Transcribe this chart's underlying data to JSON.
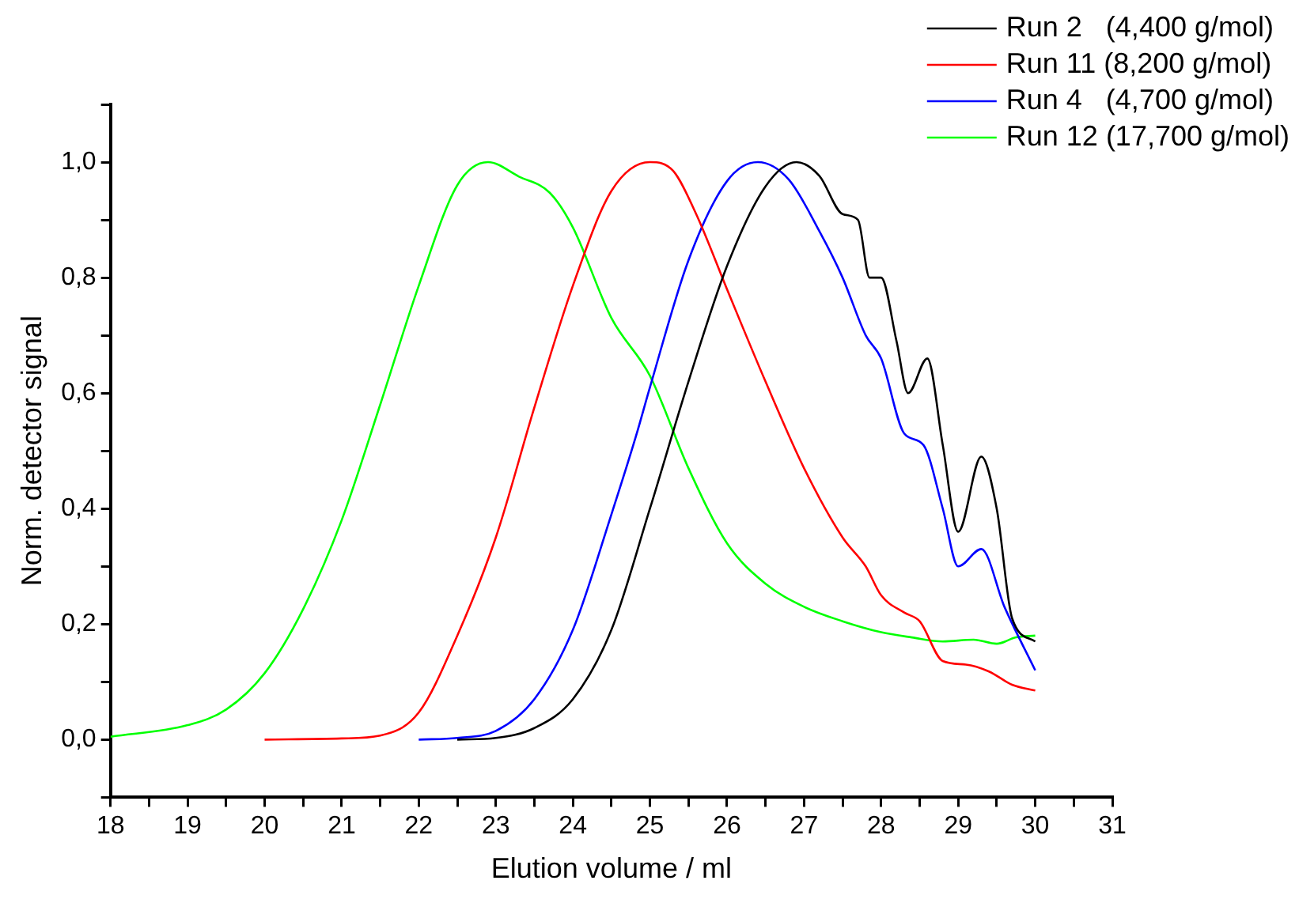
{
  "chart_data": {
    "type": "line",
    "xlabel": "Elution volume / ml",
    "ylabel": "Norm. detector signal",
    "xlim": [
      18,
      31
    ],
    "ylim": [
      -0.1,
      1.1
    ],
    "xticks": [
      18,
      {
        "value": 18.5,
        "label": null
      },
      19,
      {
        "value": 19.5,
        "label": null
      },
      20,
      {
        "value": 20.5,
        "label": null
      },
      21,
      {
        "value": 21.5,
        "label": null
      },
      22,
      {
        "value": 22.5,
        "label": null
      },
      23,
      {
        "value": 23.5,
        "label": null
      },
      24,
      {
        "value": 24.5,
        "label": null
      },
      25,
      {
        "value": 25.5,
        "label": null
      },
      26,
      {
        "value": 26.5,
        "label": null
      },
      27,
      {
        "value": 27.5,
        "label": null
      },
      28,
      {
        "value": 28.5,
        "label": null
      },
      29,
      {
        "value": 29.5,
        "label": null
      },
      30,
      {
        "value": 30.5,
        "label": null
      },
      31
    ],
    "yticks": [
      {
        "value": -0.1,
        "label": null
      },
      {
        "value": 0,
        "label": "0,0"
      },
      {
        "value": 0.1,
        "label": null
      },
      {
        "value": 0.2,
        "label": "0,2"
      },
      {
        "value": 0.3,
        "label": null
      },
      {
        "value": 0.4,
        "label": "0,4"
      },
      {
        "value": 0.5,
        "label": null
      },
      {
        "value": 0.6,
        "label": "0,6"
      },
      {
        "value": 0.7,
        "label": null
      },
      {
        "value": 0.8,
        "label": "0,8"
      },
      {
        "value": 0.9,
        "label": null
      },
      {
        "value": 1.0,
        "label": "1,0"
      },
      {
        "value": 1.1,
        "label": null
      }
    ],
    "grid": false,
    "legend": "top right",
    "marker": "none",
    "line_style": "solid",
    "series": [
      {
        "name": "Run 2   (4,400 g/mol)",
        "color": "#000000",
        "x": [
          22.5,
          23,
          23.5,
          24,
          24.5,
          25,
          25.5,
          26,
          26.5,
          26.9,
          27.2,
          27.5,
          27.7,
          27.85,
          28,
          28.2,
          28.35,
          28.6,
          28.8,
          29,
          29.3,
          29.5,
          29.7,
          30
        ],
        "values": [
          0,
          0.003,
          0.02,
          0.07,
          0.19,
          0.4,
          0.62,
          0.82,
          0.958,
          1.0,
          0.976,
          0.91,
          0.9,
          0.8,
          0.8,
          0.69,
          0.6,
          0.66,
          0.51,
          0.36,
          0.49,
          0.4,
          0.21,
          0.17
        ]
      },
      {
        "name": "Run 11 (8,200 g/mol)",
        "color": "#ff0000",
        "x": [
          20,
          21,
          21.5,
          22,
          22.5,
          23,
          23.5,
          24,
          24.5,
          25,
          25.3,
          25.6,
          26,
          26.5,
          27,
          27.5,
          27.8,
          28,
          28.3,
          28.5,
          28.8,
          29.1,
          29.4,
          29.7,
          30
        ],
        "values": [
          0,
          0.002,
          0.007,
          0.047,
          0.18,
          0.35,
          0.575,
          0.786,
          0.95,
          1.0,
          0.985,
          0.91,
          0.78,
          0.62,
          0.47,
          0.35,
          0.3,
          0.25,
          0.22,
          0.205,
          0.136,
          0.13,
          0.118,
          0.095,
          0.085
        ]
      },
      {
        "name": "Run 4   (4,700 g/mol)",
        "color": "#0000ff",
        "x": [
          22,
          22.5,
          23,
          23.5,
          24,
          24.5,
          24.82,
          25,
          25.5,
          26,
          26.4,
          26.8,
          27.2,
          27.5,
          27.8,
          28,
          28.3,
          28.55,
          28.8,
          29,
          29.3,
          29.6,
          30
        ],
        "values": [
          0,
          0.003,
          0.015,
          0.07,
          0.19,
          0.39,
          0.526,
          0.61,
          0.83,
          0.967,
          1.0,
          0.97,
          0.88,
          0.8,
          0.7,
          0.66,
          0.53,
          0.51,
          0.4,
          0.3,
          0.33,
          0.23,
          0.12
        ]
      },
      {
        "name": "Run 12 (17,700 g/mol)",
        "color": "#00ff00",
        "x": [
          18,
          19,
          19.5,
          20,
          20.5,
          21,
          21.5,
          22,
          22.5,
          22.9,
          23.3,
          23.7,
          24,
          24.5,
          25,
          25.5,
          26,
          26.5,
          27,
          27.5,
          28,
          28.4,
          28.8,
          29.2,
          29.5,
          29.75,
          30
        ],
        "values": [
          0.005,
          0.025,
          0.052,
          0.115,
          0.226,
          0.38,
          0.58,
          0.786,
          0.96,
          1.0,
          0.975,
          0.947,
          0.887,
          0.73,
          0.63,
          0.47,
          0.34,
          0.27,
          0.23,
          0.205,
          0.186,
          0.177,
          0.17,
          0.173,
          0.166,
          0.177,
          0.18
        ]
      }
    ]
  }
}
